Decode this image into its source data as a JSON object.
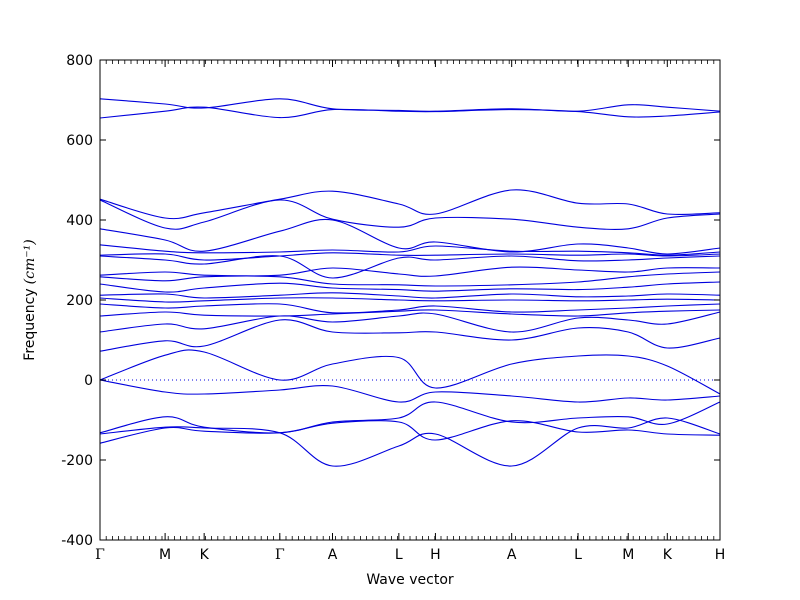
{
  "chart_data": {
    "type": "line",
    "title": "",
    "xlabel": "Wave vector",
    "ylabel": "Frequency",
    "ylabel_unit": "(cm⁻¹)",
    "ylim": [
      -400,
      800
    ],
    "y_ticks": [
      800,
      600,
      400,
      200,
      0,
      -200,
      -400
    ],
    "x_path_labels": [
      "Γ",
      "M",
      "K",
      "Γ",
      "A",
      "L",
      "H",
      "A",
      "L",
      "M",
      "K",
      "H"
    ],
    "x_path_positions": [
      0.0,
      0.105,
      0.168,
      0.29,
      0.375,
      0.482,
      0.541,
      0.664,
      0.771,
      0.852,
      0.915,
      1.0
    ],
    "grid": false,
    "line_color": "#0000dd",
    "zero_line": true,
    "bands": [
      {
        "x": [
          0,
          0.105,
          0.168,
          0.29,
          0.375,
          0.482,
          0.541,
          0.664,
          0.771,
          0.852,
          0.915,
          1.0
        ],
        "y": [
          703,
          690,
          680,
          703,
          678,
          674,
          672,
          678,
          672,
          688,
          682,
          672
        ]
      },
      {
        "x": [
          0,
          0.105,
          0.168,
          0.29,
          0.375,
          0.482,
          0.541,
          0.664,
          0.771,
          0.852,
          0.915,
          1.0
        ],
        "y": [
          655,
          672,
          682,
          656,
          676,
          672,
          671,
          676,
          671,
          658,
          660,
          670
        ]
      },
      {
        "x": [
          0,
          0.105,
          0.168,
          0.29,
          0.375,
          0.482,
          0.541,
          0.664,
          0.771,
          0.852,
          0.915,
          1.0
        ],
        "y": [
          452,
          405,
          418,
          452,
          472,
          440,
          415,
          475,
          442,
          440,
          415,
          418
        ]
      },
      {
        "x": [
          0,
          0.105,
          0.168,
          0.29,
          0.375,
          0.482,
          0.541,
          0.664,
          0.771,
          0.852,
          0.915,
          1.0
        ],
        "y": [
          450,
          380,
          395,
          450,
          402,
          382,
          405,
          402,
          382,
          378,
          405,
          415
        ]
      },
      {
        "x": [
          0,
          0.105,
          0.168,
          0.29,
          0.375,
          0.482,
          0.541,
          0.664,
          0.771,
          0.852,
          0.915,
          1.0
        ],
        "y": [
          378,
          350,
          322,
          372,
          400,
          330,
          345,
          320,
          340,
          330,
          315,
          330
        ]
      },
      {
        "x": [
          0,
          0.105,
          0.168,
          0.29,
          0.375,
          0.482,
          0.541,
          0.664,
          0.771,
          0.852,
          0.915,
          1.0
        ],
        "y": [
          338,
          322,
          318,
          320,
          325,
          320,
          335,
          322,
          322,
          318,
          312,
          320
        ]
      },
      {
        "x": [
          0,
          0.105,
          0.168,
          0.29,
          0.375,
          0.482,
          0.541,
          0.664,
          0.771,
          0.852,
          0.915,
          1.0
        ],
        "y": [
          312,
          315,
          300,
          310,
          318,
          312,
          312,
          315,
          312,
          315,
          310,
          315
        ]
      },
      {
        "x": [
          0,
          0.105,
          0.168,
          0.29,
          0.375,
          0.482,
          0.541,
          0.664,
          0.771,
          0.852,
          0.915,
          1.0
        ],
        "y": [
          310,
          300,
          290,
          310,
          255,
          305,
          300,
          310,
          298,
          300,
          305,
          310
        ]
      },
      {
        "x": [
          0,
          0.105,
          0.168,
          0.29,
          0.375,
          0.482,
          0.541,
          0.664,
          0.771,
          0.852,
          0.915,
          1.0
        ],
        "y": [
          262,
          270,
          262,
          262,
          280,
          265,
          260,
          282,
          275,
          270,
          280,
          280
        ]
      },
      {
        "x": [
          0,
          0.105,
          0.168,
          0.29,
          0.375,
          0.482,
          0.541,
          0.664,
          0.771,
          0.852,
          0.915,
          1.0
        ],
        "y": [
          258,
          248,
          258,
          258,
          240,
          238,
          235,
          238,
          245,
          258,
          265,
          270
        ]
      },
      {
        "x": [
          0,
          0.105,
          0.168,
          0.29,
          0.375,
          0.482,
          0.541,
          0.664,
          0.771,
          0.852,
          0.915,
          1.0
        ],
        "y": [
          240,
          220,
          230,
          242,
          230,
          226,
          222,
          228,
          226,
          232,
          240,
          245
        ]
      },
      {
        "x": [
          0,
          0.105,
          0.168,
          0.29,
          0.375,
          0.482,
          0.541,
          0.664,
          0.771,
          0.852,
          0.915,
          1.0
        ],
        "y": [
          212,
          215,
          205,
          212,
          218,
          210,
          205,
          215,
          208,
          210,
          215,
          212
        ]
      },
      {
        "x": [
          0,
          0.105,
          0.168,
          0.29,
          0.375,
          0.482,
          0.541,
          0.664,
          0.771,
          0.852,
          0.915,
          1.0
        ],
        "y": [
          205,
          195,
          198,
          205,
          205,
          200,
          198,
          200,
          198,
          200,
          202,
          200
        ]
      },
      {
        "x": [
          0,
          0.105,
          0.168,
          0.29,
          0.375,
          0.482,
          0.541,
          0.664,
          0.771,
          0.852,
          0.915,
          1.0
        ],
        "y": [
          190,
          180,
          185,
          190,
          168,
          175,
          185,
          170,
          175,
          180,
          185,
          190
        ]
      },
      {
        "x": [
          0,
          0.105,
          0.168,
          0.29,
          0.375,
          0.482,
          0.541,
          0.664,
          0.771,
          0.852,
          0.915,
          1.0
        ],
        "y": [
          160,
          170,
          162,
          160,
          165,
          172,
          175,
          165,
          160,
          168,
          172,
          175
        ]
      },
      {
        "x": [
          0,
          0.105,
          0.168,
          0.29,
          0.375,
          0.482,
          0.541,
          0.664,
          0.771,
          0.852,
          0.915,
          1.0
        ],
        "y": [
          120,
          140,
          128,
          160,
          145,
          160,
          165,
          120,
          155,
          150,
          140,
          170
        ]
      },
      {
        "x": [
          0,
          0.105,
          0.168,
          0.29,
          0.375,
          0.482,
          0.541,
          0.664,
          0.771,
          0.852,
          0.915,
          1.0
        ],
        "y": [
          72,
          98,
          85,
          150,
          120,
          118,
          120,
          100,
          130,
          120,
          80,
          105
        ]
      },
      {
        "x": [
          0,
          0.105,
          0.168,
          0.29,
          0.375,
          0.482,
          0.541,
          0.664,
          0.771,
          0.852,
          0.915,
          1.0
        ],
        "y": [
          0,
          62,
          70,
          0,
          40,
          56,
          -20,
          40,
          60,
          60,
          35,
          -35
        ]
      },
      {
        "x": [
          0,
          0.105,
          0.168,
          0.29,
          0.375,
          0.482,
          0.541,
          0.664,
          0.771,
          0.852,
          0.915,
          1.0
        ],
        "y": [
          0,
          -30,
          -35,
          -25,
          -15,
          -55,
          -30,
          -40,
          -55,
          -45,
          -50,
          -40
        ]
      },
      {
        "x": [
          0,
          0.105,
          0.168,
          0.29,
          0.375,
          0.482,
          0.541,
          0.664,
          0.771,
          0.852,
          0.915,
          1.0
        ],
        "y": [
          -132,
          -92,
          -118,
          -132,
          -105,
          -95,
          -55,
          -105,
          -95,
          -92,
          -110,
          -55
        ]
      },
      {
        "x": [
          0,
          0.105,
          0.168,
          0.29,
          0.375,
          0.482,
          0.541,
          0.664,
          0.771,
          0.852,
          0.915,
          1.0
        ],
        "y": [
          -135,
          -118,
          -120,
          -132,
          -215,
          -165,
          -135,
          -215,
          -120,
          -120,
          -95,
          -135
        ]
      },
      {
        "x": [
          0,
          0.105,
          0.168,
          0.29,
          0.375,
          0.482,
          0.541,
          0.664,
          0.771,
          0.852,
          0.915,
          1.0
        ],
        "y": [
          -158,
          -120,
          -128,
          -132,
          -108,
          -105,
          -150,
          -102,
          -130,
          -125,
          -135,
          -138
        ]
      }
    ]
  }
}
